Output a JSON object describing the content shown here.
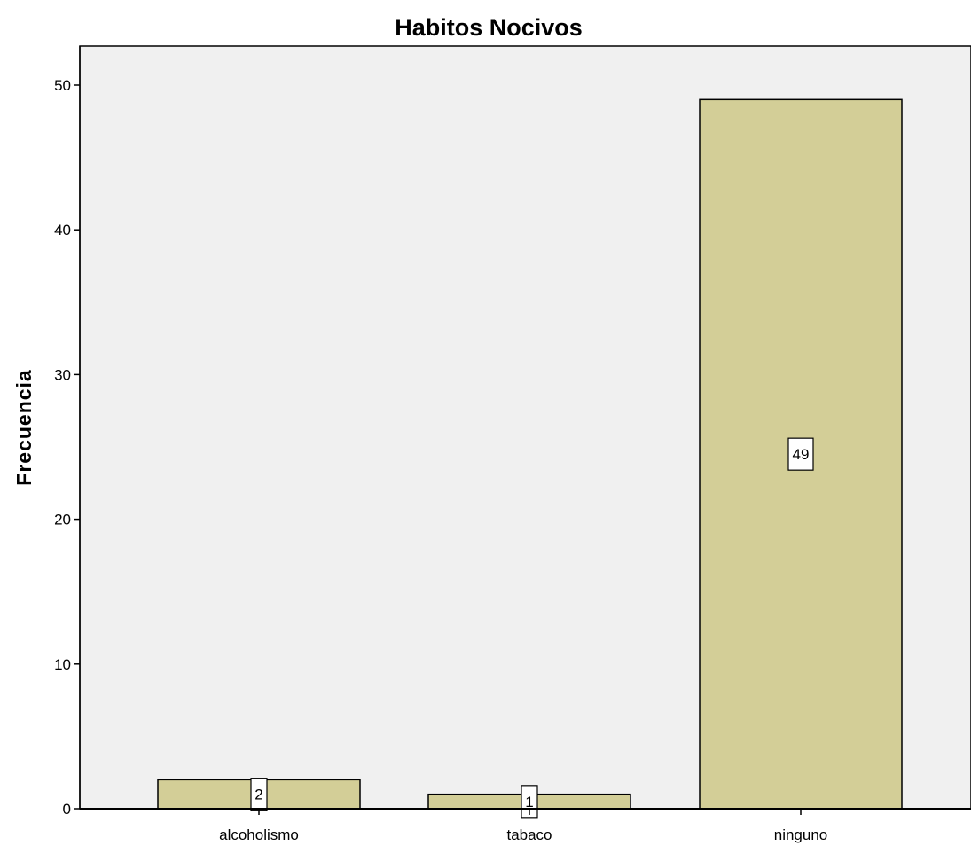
{
  "chart_data": {
    "type": "bar",
    "title": "Habitos Nocivos",
    "xlabel": "",
    "ylabel": "Frecuencia",
    "categories": [
      "alcoholismo",
      "tabaco",
      "ninguno"
    ],
    "values": [
      2,
      1,
      49
    ],
    "data_labels": [
      "2",
      "1",
      "49"
    ],
    "ylim": [
      0,
      52.5
    ],
    "yticks": [
      0,
      10,
      20,
      30,
      40,
      50
    ],
    "ytick_labels": [
      "0",
      "10",
      "20",
      "30",
      "40",
      "50"
    ],
    "grid": false,
    "legend": "none",
    "colors": {
      "bar_fill": "#d3ce97",
      "bar_stroke": "#000000",
      "plot_background": "#f0f0f0",
      "label_box_fill": "#ffffff"
    }
  }
}
